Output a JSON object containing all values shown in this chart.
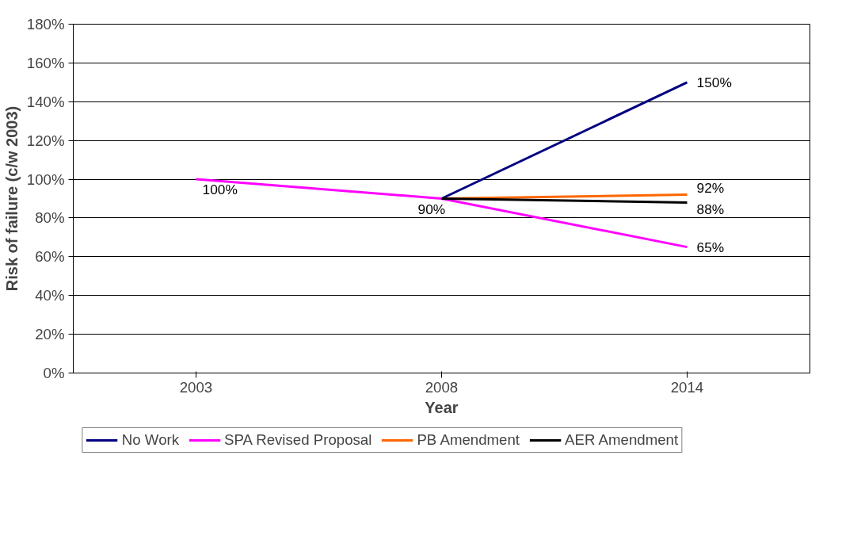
{
  "chart_data": {
    "type": "line",
    "xlabel": "Year",
    "ylabel": "Risk of failure (c/w 2003)",
    "categories": [
      "2003",
      "2008",
      "2014"
    ],
    "ylim": [
      0,
      180
    ],
    "yticks": [
      {
        "value": 0,
        "label": "0%"
      },
      {
        "value": 20,
        "label": "20%"
      },
      {
        "value": 40,
        "label": "40%"
      },
      {
        "value": 60,
        "label": "60%"
      },
      {
        "value": 80,
        "label": "80%"
      },
      {
        "value": 100,
        "label": "100%"
      },
      {
        "value": 120,
        "label": "120%"
      },
      {
        "value": 140,
        "label": "140%"
      },
      {
        "value": 160,
        "label": "160%"
      },
      {
        "value": 180,
        "label": "180%"
      }
    ],
    "grid": "y",
    "legend": "bottom",
    "series": [
      {
        "name": "No Work",
        "color": "#000080",
        "values": [
          null,
          90,
          150
        ],
        "value_labels": [
          null,
          null,
          "150%"
        ]
      },
      {
        "name": "SPA Revised Proposal",
        "color": "#ff00ff",
        "values": [
          100,
          90,
          65
        ],
        "value_labels": [
          "100%",
          "90%",
          "65%"
        ]
      },
      {
        "name": "PB Amendment",
        "color": "#ff6600",
        "values": [
          null,
          90,
          92
        ],
        "value_labels": [
          null,
          null,
          "92%"
        ]
      },
      {
        "name": "AER Amendment",
        "color": "#000000",
        "values": [
          null,
          90,
          88
        ],
        "value_labels": [
          null,
          null,
          "88%"
        ]
      }
    ]
  }
}
